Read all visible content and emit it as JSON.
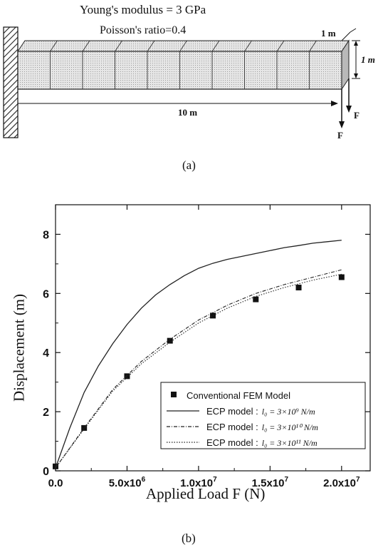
{
  "figure_a": {
    "youngs_modulus": "Young's modulus = 3 GPa",
    "poisson_ratio": "Poisson's ratio=0.4",
    "width_label": "1 m",
    "height_label": "1 m",
    "length_label": "10 m",
    "force_label_1": "F",
    "force_label_2": "F",
    "caption": "(a)"
  },
  "figure_b": {
    "caption": "(b)"
  },
  "chart_data": {
    "type": "line",
    "xlabel": "Applied Load F (N)",
    "ylabel": "Displacement (m)",
    "xlim": [
      0,
      22000000
    ],
    "ylim": [
      0,
      9
    ],
    "x_ticks": [
      0,
      5000000,
      10000000,
      15000000,
      20000000
    ],
    "x_tick_labels": [
      "0.0",
      "5.0x10",
      "1.0x10",
      "1.5x10",
      "2.0x10"
    ],
    "x_tick_exponents": [
      "",
      "6",
      "7",
      "7",
      "7"
    ],
    "y_ticks": [
      0,
      2,
      4,
      6,
      8
    ],
    "y_tick_labels": [
      "0",
      "2",
      "4",
      "6",
      "8"
    ],
    "legend_position": "bottom-right",
    "series": [
      {
        "name": "Conventional FEM Model",
        "style": "markers",
        "x": [
          0,
          2000000,
          5000000,
          8000000,
          11000000,
          14000000,
          17000000,
          20000000
        ],
        "y": [
          0.15,
          1.45,
          3.2,
          4.4,
          5.25,
          5.8,
          6.2,
          6.55
        ]
      },
      {
        "name": "ECP model :",
        "legend_math": "l₀ = 3×10⁹ N/m",
        "style": "solid",
        "x": [
          0,
          1000000,
          2000000,
          3000000,
          4000000,
          5000000,
          6000000,
          7000000,
          8000000,
          9000000,
          10000000,
          11000000,
          12000000,
          13000000,
          14000000,
          15000000,
          16000000,
          17000000,
          18000000,
          19000000,
          20000000
        ],
        "y": [
          0.1,
          1.45,
          2.65,
          3.55,
          4.3,
          4.95,
          5.5,
          5.95,
          6.3,
          6.6,
          6.85,
          7.02,
          7.15,
          7.25,
          7.35,
          7.45,
          7.55,
          7.62,
          7.7,
          7.75,
          7.8
        ]
      },
      {
        "name": "ECP model :",
        "legend_math": "l₀ = 3×10¹⁰ N/m",
        "style": "dash-dot",
        "x": [
          0,
          2000000,
          4000000,
          6000000,
          8000000,
          10000000,
          12000000,
          14000000,
          16000000,
          18000000,
          20000000
        ],
        "y": [
          0.1,
          1.45,
          2.75,
          3.7,
          4.45,
          5.1,
          5.6,
          6.0,
          6.3,
          6.55,
          6.8
        ]
      },
      {
        "name": "ECP model :",
        "legend_math": "l₀ = 3×10¹¹ N/m",
        "style": "dotted",
        "x": [
          0,
          2000000,
          4000000,
          6000000,
          8000000,
          10000000,
          12000000,
          14000000,
          16000000,
          18000000,
          20000000
        ],
        "y": [
          0.1,
          1.42,
          2.7,
          3.62,
          4.35,
          5.0,
          5.5,
          5.9,
          6.2,
          6.45,
          6.65
        ]
      }
    ]
  }
}
